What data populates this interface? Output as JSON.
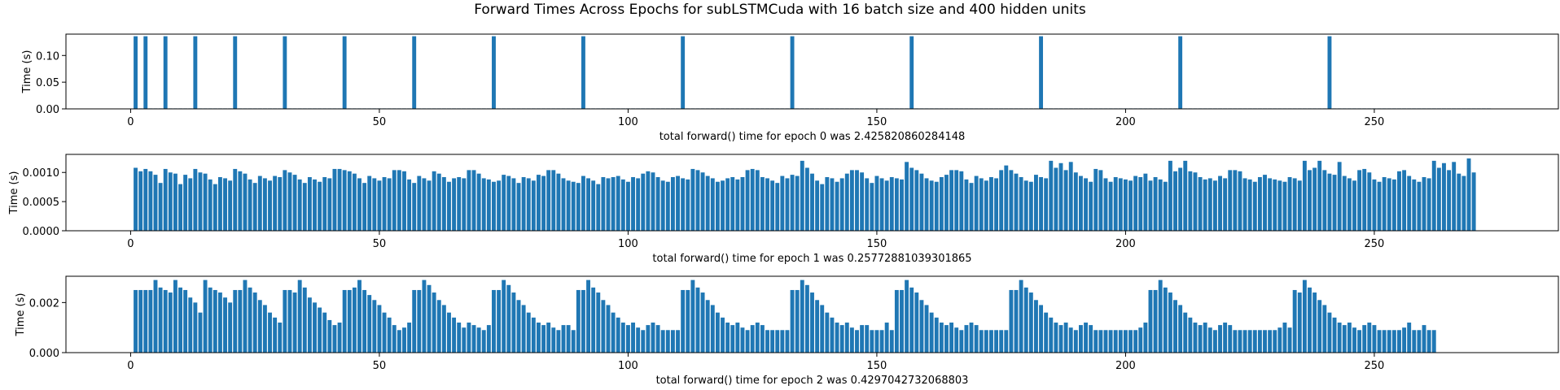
{
  "figure": {
    "title": "Forward Times Across Epochs for subLSTMCuda with 16 batch size and 400 hidden units",
    "bar_color": "#1f77b4"
  },
  "chart_data": [
    {
      "type": "bar",
      "title": "",
      "xlabel": "total forward() time for epoch 0 was 2.425820860284148",
      "ylabel": "Time (s)",
      "xlim": [
        -13,
        287
      ],
      "ylim": [
        0,
        0.14
      ],
      "x_ticks": [
        0,
        50,
        100,
        150,
        200,
        250
      ],
      "x_tick_labels": [
        "0",
        "50",
        "100",
        "150",
        "200",
        "250"
      ],
      "y_ticks": [
        0,
        0.05,
        0.1
      ],
      "y_tick_labels": [
        "0.00",
        "0.05",
        "0.10"
      ],
      "x_start": 1,
      "bar_width": 0.8,
      "values": [
        0.136,
        0.0002,
        0.136,
        0.0002,
        0.0002,
        0.0002,
        0.136,
        0.0002,
        0.0002,
        0.0002,
        0.0002,
        0.0002,
        0.136,
        0.0002,
        0.0002,
        0.0002,
        0.0002,
        0.0002,
        0.0002,
        0.0002,
        0.136,
        0.0002,
        0.0002,
        0.0002,
        0.0002,
        0.0002,
        0.0002,
        0.0002,
        0.0002,
        0.0002,
        0.136,
        0.0002,
        0.0002,
        0.0002,
        0.0002,
        0.0002,
        0.0002,
        0.0002,
        0.0002,
        0.0002,
        0.0002,
        0.0002,
        0.136,
        0.0002,
        0.0002,
        0.0002,
        0.0002,
        0.0002,
        0.0002,
        0.0002,
        0.0002,
        0.0002,
        0.0002,
        0.0002,
        0.0002,
        0.0002,
        0.136,
        0.0002,
        0.0002,
        0.0002,
        0.0002,
        0.0002,
        0.0002,
        0.0002,
        0.0002,
        0.0002,
        0.0002,
        0.0002,
        0.0002,
        0.0002,
        0.0002,
        0.0002,
        0.136,
        0.0002,
        0.0002,
        0.0002,
        0.0002,
        0.0002,
        0.0002,
        0.0002,
        0.0002,
        0.0002,
        0.0002,
        0.0002,
        0.0002,
        0.0002,
        0.0002,
        0.0002,
        0.0002,
        0.0002,
        0.136,
        0.0002,
        0.0002,
        0.0002,
        0.0002,
        0.0002,
        0.0002,
        0.0002,
        0.0002,
        0.0002,
        0.0002,
        0.0002,
        0.0002,
        0.0002,
        0.0002,
        0.0002,
        0.0002,
        0.0002,
        0.0002,
        0.0002,
        0.136,
        0.0002,
        0.0002,
        0.0002,
        0.0002,
        0.0002,
        0.0002,
        0.0002,
        0.0002,
        0.0002,
        0.0002,
        0.0002,
        0.0002,
        0.0002,
        0.0002,
        0.0002,
        0.0002,
        0.0002,
        0.0002,
        0.0002,
        0.0002,
        0.0002,
        0.136,
        0.0002,
        0.0002,
        0.0002,
        0.0002,
        0.0002,
        0.0002,
        0.0002,
        0.0002,
        0.0002,
        0.0002,
        0.0002,
        0.0002,
        0.0002,
        0.0002,
        0.0002,
        0.0002,
        0.0002,
        0.0002,
        0.0002,
        0.0002,
        0.0002,
        0.0002,
        0.0002,
        0.136,
        0.0002,
        0.0002,
        0.0002,
        0.0002,
        0.0002,
        0.0002,
        0.0002,
        0.0002,
        0.0002,
        0.0002,
        0.0002,
        0.0002,
        0.0002,
        0.0002,
        0.0002,
        0.0002,
        0.0002,
        0.0002,
        0.0002,
        0.0002,
        0.0002,
        0.0002,
        0.0002,
        0.0002,
        0.0002,
        0.136,
        0.0002,
        0.0002,
        0.0002,
        0.0002,
        0.0002,
        0.0002,
        0.0002,
        0.0002,
        0.0002,
        0.0002,
        0.0002,
        0.0002,
        0.0002,
        0.0002,
        0.0002,
        0.0002,
        0.0002,
        0.0002,
        0.0002,
        0.0002,
        0.0002,
        0.0002,
        0.0002,
        0.0002,
        0.0002,
        0.0002,
        0.0002,
        0.136,
        0.0002,
        0.0002,
        0.0002,
        0.0002,
        0.0002,
        0.0002,
        0.0002,
        0.0002,
        0.0002,
        0.0002,
        0.0002,
        0.0002,
        0.0002,
        0.0002,
        0.0002,
        0.0002,
        0.0002,
        0.0002,
        0.0002,
        0.0002,
        0.0002,
        0.0002,
        0.0002,
        0.0002,
        0.0002,
        0.0002,
        0.0002,
        0.0002,
        0.0002,
        0.136,
        0.0002,
        0.0002,
        0.0002,
        0.0002,
        0.0002,
        0.0002,
        0.0002,
        0.0002,
        0.0002,
        0.0002,
        0.0002,
        0.0002,
        0.0002,
        0.0002,
        0.0002,
        0.0002,
        0.0002,
        0.0002,
        0.0002,
        0.0002,
        0.0002,
        0.0002,
        0.0002,
        0.0002,
        0.0002,
        0.0002,
        0.0002,
        0.0002,
        0.0002,
        0.0002,
        0.0002,
        0.0002
      ]
    },
    {
      "type": "bar",
      "title": "",
      "xlabel": "total forward() time for epoch 1 was 0.25772881039301865",
      "ylabel": "Time (s)",
      "xlim": [
        -13,
        287
      ],
      "ylim": [
        0,
        0.00131
      ],
      "x_ticks": [
        0,
        50,
        100,
        150,
        200,
        250
      ],
      "x_tick_labels": [
        "0",
        "50",
        "100",
        "150",
        "200",
        "250"
      ],
      "y_ticks": [
        0,
        0.0005,
        0.001
      ],
      "y_tick_labels": [
        "0.0000",
        "0.0005",
        "0.0010"
      ],
      "x_start": 1,
      "bar_width": 0.8,
      "values": [
        0.00108,
        0.00102,
        0.00106,
        0.00102,
        0.00096,
        0.00082,
        0.00106,
        0.001,
        0.00098,
        0.0008,
        0.00096,
        0.0009,
        0.00106,
        0.001,
        0.00098,
        0.00088,
        0.0008,
        0.00092,
        0.0009,
        0.00086,
        0.00106,
        0.00102,
        0.00098,
        0.00088,
        0.00082,
        0.00094,
        0.0009,
        0.00086,
        0.00094,
        0.00092,
        0.00104,
        0.001,
        0.00096,
        0.00088,
        0.00082,
        0.00092,
        0.00088,
        0.00084,
        0.00092,
        0.0009,
        0.00106,
        0.00106,
        0.00104,
        0.00102,
        0.00098,
        0.0009,
        0.00082,
        0.00094,
        0.0009,
        0.00086,
        0.00092,
        0.0009,
        0.00104,
        0.00104,
        0.00102,
        0.00088,
        0.00082,
        0.00094,
        0.0009,
        0.00086,
        0.00102,
        0.00098,
        0.00092,
        0.00084,
        0.0009,
        0.00092,
        0.0009,
        0.00104,
        0.00104,
        0.00098,
        0.0009,
        0.00088,
        0.00084,
        0.00086,
        0.00096,
        0.00094,
        0.0009,
        0.00082,
        0.00092,
        0.0009,
        0.00086,
        0.00096,
        0.00094,
        0.00104,
        0.00104,
        0.00098,
        0.0009,
        0.00086,
        0.00084,
        0.00082,
        0.00094,
        0.0009,
        0.00086,
        0.0008,
        0.00092,
        0.0009,
        0.00092,
        0.00094,
        0.00088,
        0.00084,
        0.00092,
        0.0009,
        0.00098,
        0.00102,
        0.001,
        0.00092,
        0.00086,
        0.00084,
        0.00092,
        0.00094,
        0.0009,
        0.00088,
        0.00106,
        0.00104,
        0.001,
        0.00094,
        0.0009,
        0.00084,
        0.00086,
        0.0009,
        0.00092,
        0.00088,
        0.00092,
        0.00104,
        0.00106,
        0.00104,
        0.00092,
        0.0009,
        0.00086,
        0.00082,
        0.00094,
        0.0009,
        0.00096,
        0.00094,
        0.0012,
        0.00108,
        0.00098,
        0.00086,
        0.0008,
        0.00092,
        0.0009,
        0.00084,
        0.0009,
        0.00098,
        0.00104,
        0.00104,
        0.001,
        0.0009,
        0.00082,
        0.00094,
        0.0009,
        0.00086,
        0.00092,
        0.0009,
        0.00088,
        0.00118,
        0.00108,
        0.00104,
        0.00098,
        0.0009,
        0.00086,
        0.00084,
        0.00092,
        0.00096,
        0.00104,
        0.00104,
        0.00102,
        0.00088,
        0.00082,
        0.00094,
        0.0009,
        0.00086,
        0.00092,
        0.0009,
        0.00104,
        0.00112,
        0.00104,
        0.00098,
        0.00092,
        0.00086,
        0.00084,
        0.00096,
        0.00092,
        0.0009,
        0.0012,
        0.00108,
        0.00116,
        0.00104,
        0.00118,
        0.001,
        0.00094,
        0.0009,
        0.00084,
        0.00106,
        0.00104,
        0.0009,
        0.00084,
        0.00092,
        0.0009,
        0.00088,
        0.00086,
        0.00094,
        0.00092,
        0.00098,
        0.00086,
        0.00092,
        0.00088,
        0.00084,
        0.0012,
        0.00102,
        0.00108,
        0.0012,
        0.00102,
        0.001,
        0.00092,
        0.00088,
        0.0009,
        0.00086,
        0.00094,
        0.0009,
        0.00104,
        0.00104,
        0.00102,
        0.0009,
        0.00088,
        0.00084,
        0.00092,
        0.00096,
        0.0009,
        0.00088,
        0.00086,
        0.00084,
        0.00092,
        0.0009,
        0.00086,
        0.0012,
        0.00104,
        0.00108,
        0.0012,
        0.00104,
        0.00098,
        0.00096,
        0.00118,
        0.00094,
        0.0009,
        0.00086,
        0.00104,
        0.00106,
        0.001,
        0.00088,
        0.00084,
        0.00092,
        0.0009,
        0.00088,
        0.00102,
        0.00104,
        0.00094,
        0.00088,
        0.00084,
        0.00092,
        0.0009,
        0.0012,
        0.00108,
        0.00116,
        0.00104,
        0.00118,
        0.00098,
        0.00094,
        0.00124,
        0.001
      ]
    },
    {
      "type": "bar",
      "title": "",
      "xlabel": "total forward() time for epoch 2 was 0.4297042732068803",
      "ylabel": "Time (s)",
      "xlim": [
        -13,
        287
      ],
      "ylim": [
        0,
        0.00305
      ],
      "x_ticks": [
        0,
        50,
        100,
        150,
        200,
        250
      ],
      "x_tick_labels": [
        "0",
        "50",
        "100",
        "150",
        "200",
        "250"
      ],
      "y_ticks": [
        0,
        0.002
      ],
      "y_tick_labels": [
        "0.000",
        "0.002"
      ],
      "x_start": 1,
      "bar_width": 0.8,
      "values": [
        0.0025,
        0.0025,
        0.0025,
        0.0025,
        0.0029,
        0.0026,
        0.0025,
        0.0024,
        0.0029,
        0.0026,
        0.0025,
        0.0022,
        0.002,
        0.0016,
        0.0029,
        0.0026,
        0.0025,
        0.0024,
        0.0022,
        0.002,
        0.0025,
        0.0025,
        0.0029,
        0.0026,
        0.0024,
        0.0021,
        0.0019,
        0.0016,
        0.0014,
        0.0012,
        0.0025,
        0.0025,
        0.0024,
        0.0029,
        0.0026,
        0.0022,
        0.002,
        0.0018,
        0.0016,
        0.0013,
        0.0011,
        0.0012,
        0.0025,
        0.0025,
        0.0026,
        0.0029,
        0.0025,
        0.0023,
        0.0021,
        0.0019,
        0.0016,
        0.0014,
        0.0011,
        0.0009,
        0.001,
        0.0012,
        0.0025,
        0.0025,
        0.0029,
        0.0027,
        0.0024,
        0.0021,
        0.0019,
        0.0016,
        0.0014,
        0.0012,
        0.001,
        0.0012,
        0.0011,
        0.001,
        0.0009,
        0.0011,
        0.0025,
        0.0025,
        0.0029,
        0.0027,
        0.0024,
        0.0021,
        0.0019,
        0.0016,
        0.0014,
        0.0012,
        0.0011,
        0.0012,
        0.001,
        0.0009,
        0.0011,
        0.0011,
        0.0009,
        0.0025,
        0.0025,
        0.0029,
        0.0026,
        0.0024,
        0.0021,
        0.0019,
        0.0016,
        0.0014,
        0.0012,
        0.0011,
        0.0012,
        0.001,
        0.0009,
        0.0011,
        0.0012,
        0.0011,
        0.0009,
        0.0009,
        0.0009,
        0.0009,
        0.0025,
        0.0025,
        0.0029,
        0.0026,
        0.0024,
        0.0021,
        0.0019,
        0.0016,
        0.0014,
        0.0012,
        0.0011,
        0.0012,
        0.001,
        0.0009,
        0.0011,
        0.0012,
        0.0011,
        0.0009,
        0.0009,
        0.0009,
        0.0009,
        0.0009,
        0.0025,
        0.0025,
        0.0029,
        0.0027,
        0.0024,
        0.0021,
        0.0019,
        0.0016,
        0.0014,
        0.0012,
        0.0011,
        0.0012,
        0.001,
        0.0009,
        0.0011,
        0.0011,
        0.0009,
        0.0009,
        0.0009,
        0.0012,
        0.0009,
        0.0025,
        0.0025,
        0.0029,
        0.0026,
        0.0024,
        0.0021,
        0.0019,
        0.0016,
        0.0014,
        0.0012,
        0.0011,
        0.0012,
        0.001,
        0.0009,
        0.0011,
        0.0012,
        0.0011,
        0.0009,
        0.0009,
        0.0009,
        0.0009,
        0.0009,
        0.0009,
        0.0025,
        0.0025,
        0.0029,
        0.0026,
        0.0024,
        0.0021,
        0.0019,
        0.0016,
        0.0014,
        0.0012,
        0.0011,
        0.0012,
        0.001,
        0.0009,
        0.0011,
        0.0012,
        0.0011,
        0.0009,
        0.0009,
        0.0009,
        0.0009,
        0.0009,
        0.0009,
        0.0009,
        0.0009,
        0.0009,
        0.001,
        0.0012,
        0.0025,
        0.0025,
        0.0029,
        0.0026,
        0.0024,
        0.0021,
        0.0019,
        0.0016,
        0.0014,
        0.0012,
        0.0011,
        0.0012,
        0.001,
        0.0009,
        0.0011,
        0.0012,
        0.0011,
        0.0009,
        0.0009,
        0.0009,
        0.0009,
        0.0009,
        0.0009,
        0.0009,
        0.0009,
        0.0009,
        0.001,
        0.0012,
        0.001,
        0.0025,
        0.0024,
        0.0029,
        0.0026,
        0.0024,
        0.0021,
        0.0019,
        0.0016,
        0.0014,
        0.0012,
        0.0011,
        0.0012,
        0.001,
        0.0009,
        0.0011,
        0.0012,
        0.0011,
        0.0009,
        0.0009,
        0.0009,
        0.0009,
        0.0009,
        0.001,
        0.0012,
        0.0009,
        0.0009,
        0.0011,
        0.0009,
        0.0009
      ]
    }
  ]
}
